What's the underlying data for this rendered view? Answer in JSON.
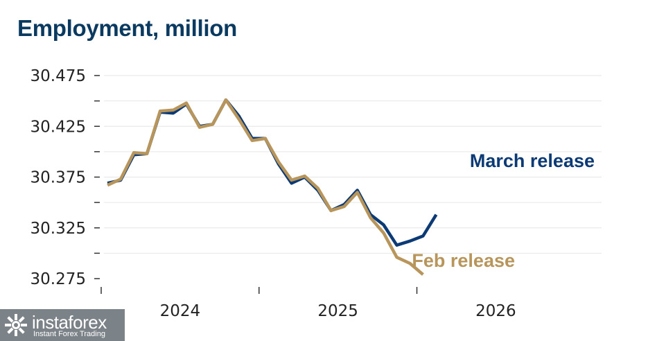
{
  "chart_data": {
    "type": "line",
    "title": "Employment, million",
    "ylim": [
      30.275,
      30.475
    ],
    "y_ticks": [
      "30.475",
      "30.425",
      "30.375",
      "30.325",
      "30.275"
    ],
    "y_tick_values": [
      30.475,
      30.425,
      30.375,
      30.325,
      30.275
    ],
    "y_minor_step": 0.025,
    "x_range": [
      2023.0,
      2026.17
    ],
    "x_ticks": [
      "2024",
      "2025",
      "2026"
    ],
    "x_tick_positions": [
      2023.5,
      2024.5,
      2025.5
    ],
    "x_tick_marks": [
      2023.0,
      2024.0,
      2025.0
    ],
    "grid": true,
    "series": [
      {
        "name": "March release",
        "color": "#0b3a75",
        "start": 2023.04,
        "step": 0.0833,
        "values": [
          30.369,
          30.372,
          30.397,
          30.398,
          30.439,
          30.438,
          30.447,
          30.425,
          30.427,
          30.451,
          30.435,
          30.413,
          30.413,
          30.388,
          30.369,
          30.375,
          30.362,
          30.342,
          30.348,
          30.362,
          30.338,
          30.328,
          30.308,
          30.312,
          30.317,
          30.338
        ]
      },
      {
        "name": "Feb release",
        "color": "#b8955a",
        "start": 2023.04,
        "step": 0.0833,
        "values": [
          30.367,
          30.373,
          30.399,
          30.398,
          30.44,
          30.441,
          30.448,
          30.424,
          30.427,
          30.451,
          30.432,
          30.411,
          30.413,
          30.39,
          30.372,
          30.376,
          30.364,
          30.342,
          30.346,
          30.36,
          30.335,
          30.32,
          30.296,
          30.29,
          30.279
        ]
      }
    ],
    "annotations": [
      "March release",
      "Feb release"
    ]
  },
  "watermark": {
    "brand": "instaforex",
    "tagline": "Instant Forex Trading"
  }
}
